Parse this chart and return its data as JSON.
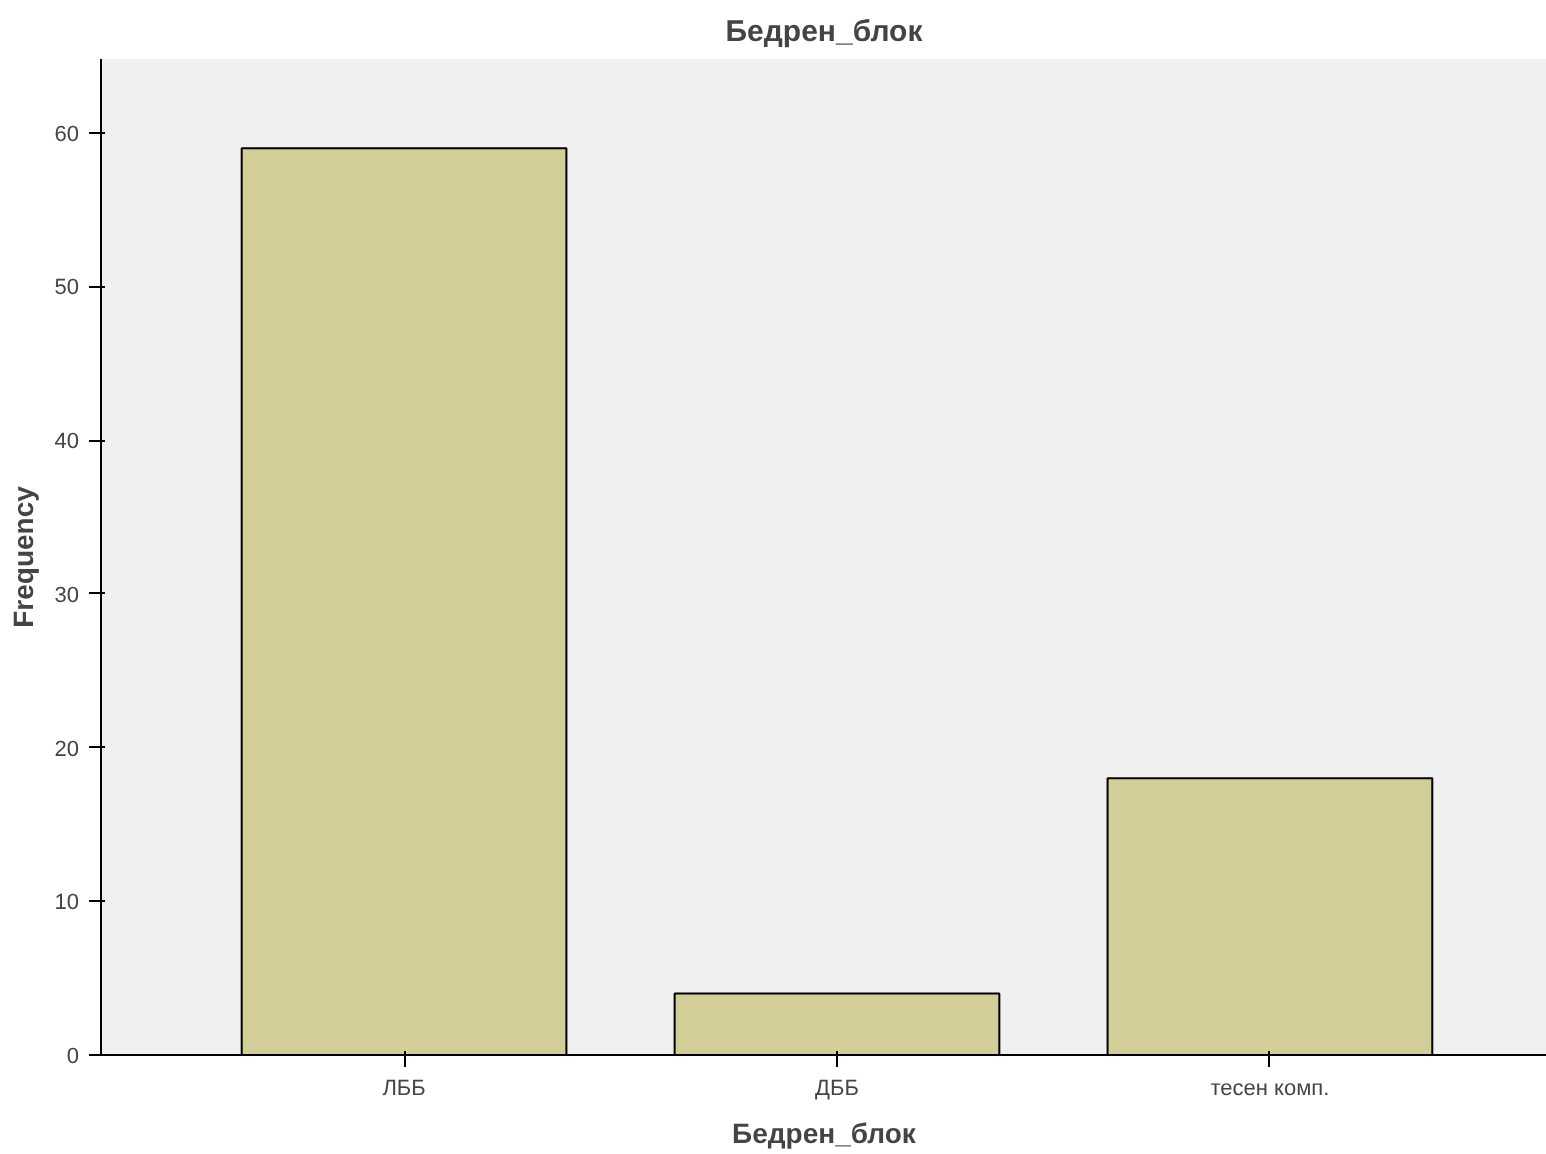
{
  "chart_data": {
    "type": "bar",
    "title": "Бедрен_блок",
    "xlabel": "Бедрен_блок",
    "ylabel": "Frequency",
    "categories": [
      "ЛББ",
      "ДББ",
      "тесен комп."
    ],
    "values": [
      59,
      4,
      18
    ],
    "color": "#d3ce97",
    "ylim": [
      0,
      64.8
    ],
    "yticks": [
      0,
      10,
      20,
      30,
      40,
      50,
      60
    ],
    "grid": false
  }
}
